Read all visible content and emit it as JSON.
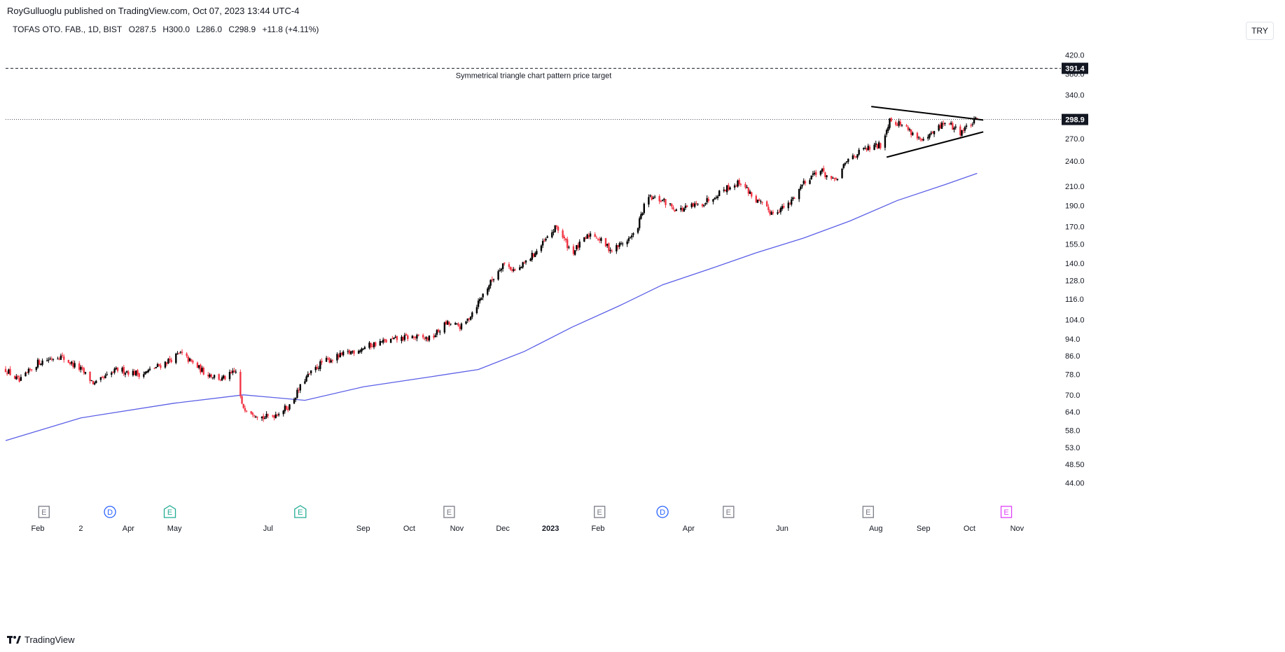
{
  "publish_line": "RoyGulluoglu published on TradingView.com, Oct 07, 2023 13:44 UTC-4",
  "legend": {
    "symbol": "TOFAS OTO. FAB., 1D, BIST",
    "open": "O287.5",
    "high": "H300.0",
    "low": "L286.0",
    "close": "C298.9",
    "change": "+11.8 (+4.11%)"
  },
  "currency_button": "TRY",
  "footer_brand": "TradingView",
  "annotation_text": "Symmetrical triangle chart pattern price target",
  "colors": {
    "up": "#000000",
    "down": "#f23645",
    "ma": "#5b5fe6",
    "label_bg": "#131722",
    "grid_text": "#131722",
    "event_earnings": "#787b86",
    "event_earnings_green": "#22ab94",
    "event_dividend": "#2962ff",
    "event_future": "#e040fb"
  },
  "chart_data": {
    "type": "candlestick",
    "y_scale": "log",
    "ylim": [
      40.5,
      470
    ],
    "price_tick_labels": [
      "420.0",
      "380.0",
      "340.0",
      "270.0",
      "240.0",
      "210.0",
      "190.0",
      "170.0",
      "155.0",
      "140.0",
      "128.0",
      "116.0",
      "104.0",
      "94.0",
      "86.0",
      "78.0",
      "70.0",
      "64.0",
      "58.0",
      "53.0",
      "48.50",
      "44.00"
    ],
    "price_ticks": [
      420,
      380,
      340,
      270,
      240,
      210,
      190,
      170,
      155,
      140,
      128,
      116,
      104,
      94,
      86,
      78,
      70,
      64,
      58,
      53,
      48.5,
      44
    ],
    "current_price_label": "298.9",
    "current_price": 298.9,
    "target_price_label": "391.4",
    "target_price": 391.4,
    "x_labels": [
      {
        "label": "Feb",
        "date": "2022-02-01"
      },
      {
        "label": "2",
        "date": "2022-03-01"
      },
      {
        "label": "Apr",
        "date": "2022-04-01"
      },
      {
        "label": "May",
        "date": "2022-05-01"
      },
      {
        "label": "Jul",
        "date": "2022-07-01"
      },
      {
        "label": "Sep",
        "date": "2022-09-01"
      },
      {
        "label": "Oct",
        "date": "2022-10-01"
      },
      {
        "label": "Nov",
        "date": "2022-11-01"
      },
      {
        "label": "Dec",
        "date": "2022-12-01"
      },
      {
        "label": "2023",
        "date": "2023-01-01",
        "bold": true
      },
      {
        "label": "Feb",
        "date": "2023-02-01"
      },
      {
        "label": "Apr",
        "date": "2023-04-01"
      },
      {
        "label": "Jun",
        "date": "2023-06-01"
      },
      {
        "label": "Aug",
        "date": "2023-08-01"
      },
      {
        "label": "Sep",
        "date": "2023-09-01"
      },
      {
        "label": "Oct",
        "date": "2023-10-01"
      },
      {
        "label": "Nov",
        "date": "2023-11-01"
      }
    ],
    "x_range": [
      "2022-01-11",
      "2023-11-25"
    ],
    "price_path": [
      {
        "date": "2022-01-11",
        "close": 80
      },
      {
        "date": "2022-01-20",
        "close": 75
      },
      {
        "date": "2022-02-01",
        "close": 83
      },
      {
        "date": "2022-02-15",
        "close": 86
      },
      {
        "date": "2022-03-01",
        "close": 80
      },
      {
        "date": "2022-03-10",
        "close": 74
      },
      {
        "date": "2022-03-25",
        "close": 80
      },
      {
        "date": "2022-04-10",
        "close": 78
      },
      {
        "date": "2022-04-25",
        "close": 83
      },
      {
        "date": "2022-05-05",
        "close": 87
      },
      {
        "date": "2022-05-20",
        "close": 79
      },
      {
        "date": "2022-06-01",
        "close": 76
      },
      {
        "date": "2022-06-10",
        "close": 79
      },
      {
        "date": "2022-06-14",
        "close": 66
      },
      {
        "date": "2022-06-28",
        "close": 62
      },
      {
        "date": "2022-07-05",
        "close": 63
      },
      {
        "date": "2022-07-15",
        "close": 66
      },
      {
        "date": "2022-07-25",
        "close": 76
      },
      {
        "date": "2022-08-05",
        "close": 83
      },
      {
        "date": "2022-08-25",
        "close": 88
      },
      {
        "date": "2022-09-10",
        "close": 92
      },
      {
        "date": "2022-10-01",
        "close": 95
      },
      {
        "date": "2022-10-15",
        "close": 94
      },
      {
        "date": "2022-10-25",
        "close": 102
      },
      {
        "date": "2022-11-05",
        "close": 100
      },
      {
        "date": "2022-11-20",
        "close": 122
      },
      {
        "date": "2022-12-01",
        "close": 140
      },
      {
        "date": "2022-12-10",
        "close": 134
      },
      {
        "date": "2022-12-25",
        "close": 152
      },
      {
        "date": "2023-01-05",
        "close": 170
      },
      {
        "date": "2023-01-15",
        "close": 148
      },
      {
        "date": "2023-01-28",
        "close": 165
      },
      {
        "date": "2023-02-05",
        "close": 155
      },
      {
        "date": "2023-02-10",
        "close": 150
      },
      {
        "date": "2023-02-25",
        "close": 163
      },
      {
        "date": "2023-03-05",
        "close": 198
      },
      {
        "date": "2023-03-15",
        "close": 195
      },
      {
        "date": "2023-03-25",
        "close": 185
      },
      {
        "date": "2023-04-10",
        "close": 192
      },
      {
        "date": "2023-04-25",
        "close": 208
      },
      {
        "date": "2023-05-05",
        "close": 215
      },
      {
        "date": "2023-05-15",
        "close": 195
      },
      {
        "date": "2023-05-25",
        "close": 183
      },
      {
        "date": "2023-06-05",
        "close": 190
      },
      {
        "date": "2023-06-15",
        "close": 215
      },
      {
        "date": "2023-06-25",
        "close": 230
      },
      {
        "date": "2023-07-05",
        "close": 215
      },
      {
        "date": "2023-07-15",
        "close": 245
      },
      {
        "date": "2023-07-25",
        "close": 255
      },
      {
        "date": "2023-08-05",
        "close": 262
      },
      {
        "date": "2023-08-10",
        "close": 300
      },
      {
        "date": "2023-08-20",
        "close": 288
      },
      {
        "date": "2023-09-01",
        "close": 265
      },
      {
        "date": "2023-09-15",
        "close": 295
      },
      {
        "date": "2023-09-25",
        "close": 280
      },
      {
        "date": "2023-10-06",
        "close": 298.9
      }
    ],
    "moving_average": {
      "points": [
        {
          "date": "2022-01-11",
          "value": 55
        },
        {
          "date": "2022-03-01",
          "value": 62
        },
        {
          "date": "2022-05-01",
          "value": 67
        },
        {
          "date": "2022-06-15",
          "value": 70
        },
        {
          "date": "2022-07-25",
          "value": 68
        },
        {
          "date": "2022-09-01",
          "value": 73
        },
        {
          "date": "2022-10-15",
          "value": 77
        },
        {
          "date": "2022-11-15",
          "value": 80
        },
        {
          "date": "2022-12-15",
          "value": 88
        },
        {
          "date": "2023-01-15",
          "value": 100
        },
        {
          "date": "2023-02-15",
          "value": 112
        },
        {
          "date": "2023-03-15",
          "value": 125
        },
        {
          "date": "2023-04-15",
          "value": 136
        },
        {
          "date": "2023-05-15",
          "value": 148
        },
        {
          "date": "2023-06-15",
          "value": 160
        },
        {
          "date": "2023-07-15",
          "value": 175
        },
        {
          "date": "2023-08-15",
          "value": 195
        },
        {
          "date": "2023-09-15",
          "value": 212
        },
        {
          "date": "2023-10-06",
          "value": 225
        }
      ]
    },
    "triangle": {
      "upper": [
        {
          "date": "2023-07-29",
          "price": 320
        },
        {
          "date": "2023-10-10",
          "price": 298
        }
      ],
      "lower": [
        {
          "date": "2023-08-08",
          "price": 245
        },
        {
          "date": "2023-10-10",
          "price": 280
        }
      ]
    },
    "events": [
      {
        "type": "earnings",
        "label": "E",
        "date": "2022-02-05",
        "style": "gray"
      },
      {
        "type": "dividend",
        "label": "D",
        "date": "2022-03-20",
        "style": "blue"
      },
      {
        "type": "earnings",
        "label": "E",
        "date": "2022-04-28",
        "style": "green"
      },
      {
        "type": "earnings",
        "label": "E",
        "date": "2022-07-22",
        "style": "green"
      },
      {
        "type": "earnings",
        "label": "E",
        "date": "2022-10-27",
        "style": "gray"
      },
      {
        "type": "earnings",
        "label": "E",
        "date": "2023-02-02",
        "style": "gray"
      },
      {
        "type": "dividend",
        "label": "D",
        "date": "2023-03-15",
        "style": "blue"
      },
      {
        "type": "earnings",
        "label": "E",
        "date": "2023-04-27",
        "style": "gray"
      },
      {
        "type": "earnings",
        "label": "E",
        "date": "2023-07-27",
        "style": "gray"
      },
      {
        "type": "earnings",
        "label": "E",
        "date": "2023-10-25",
        "style": "purple"
      }
    ]
  }
}
